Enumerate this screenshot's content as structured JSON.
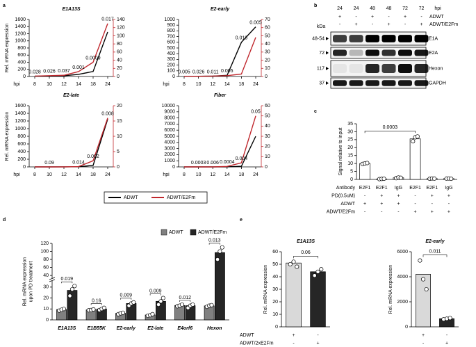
{
  "panel_labels": [
    "a",
    "b",
    "c",
    "d",
    "e"
  ],
  "blot": {
    "lanes": [
      "24",
      "24",
      "48",
      "48",
      "72",
      "72"
    ],
    "lane_unit": "hpi",
    "conditions": [
      {
        "label": "ADWT",
        "cells": [
          "+",
          "-",
          "+",
          "-",
          "+",
          "-"
        ]
      },
      {
        "label": "ADWT/E2Fm",
        "cells": [
          "-",
          "+",
          "-",
          "+",
          "-",
          "+"
        ]
      }
    ],
    "kda_unit": "kDa",
    "bands": [
      {
        "kda": "48-54",
        "name": "E1A"
      },
      {
        "kda": "72",
        "name": "E2A"
      },
      {
        "kda": "117",
        "name": "Hexon"
      },
      {
        "kda": "37",
        "name": "GAPDH"
      }
    ]
  },
  "chart_data": [
    {
      "type": "line",
      "title": "E1A13S",
      "ylabel": "Rel. mRNA expression",
      "xlabel": "hpi",
      "categories": [
        "8",
        "10",
        "12",
        "14",
        "18",
        "24"
      ],
      "series": [
        {
          "color": "#000000",
          "values": [
            8,
            10,
            20,
            60,
            140,
            1250
          ]
        },
        {
          "color": "#c0272d",
          "axis": "y2",
          "values": [
            1,
            2,
            3,
            12,
            35,
            130
          ]
        }
      ],
      "annotations": [
        "0.028",
        "0.026",
        "0.037",
        "0.001",
        "0.0009",
        "0.017"
      ],
      "ylim": [
        0,
        1600
      ],
      "yticks": [
        0,
        200,
        400,
        600,
        800,
        1000,
        1200,
        1400,
        1600
      ],
      "y2lim": [
        0,
        140
      ],
      "y2ticks": [
        0,
        20,
        40,
        60,
        80,
        100,
        120,
        140
      ]
    },
    {
      "type": "line",
      "title": "E2-early",
      "xlabel": "hpi",
      "categories": [
        "8",
        "10",
        "12",
        "14",
        "18",
        "24"
      ],
      "series": [
        {
          "color": "#000000",
          "values": [
            3,
            4,
            6,
            20,
            600,
            870
          ]
        },
        {
          "color": "#c0272d",
          "axis": "y2",
          "values": [
            0.2,
            0.3,
            0.5,
            1,
            3,
            48
          ]
        }
      ],
      "annotations": [
        "0.005",
        "0.026",
        "0.011",
        "0.005",
        "0.018",
        "0.005"
      ],
      "ylim": [
        0,
        1000
      ],
      "yticks": [
        0,
        100,
        200,
        300,
        400,
        500,
        600,
        700,
        800,
        900,
        1000
      ],
      "y2lim": [
        0,
        70
      ],
      "y2ticks": [
        0,
        10,
        20,
        30,
        40,
        50,
        60,
        70
      ]
    },
    {
      "type": "line",
      "title": "E2-late",
      "ylabel": "Rel. mRNA expression",
      "xlabel": "hpi",
      "categories": [
        "8",
        "10",
        "12",
        "14",
        "18",
        "24"
      ],
      "series": [
        {
          "color": "#000000",
          "values": [
            0,
            0,
            1,
            3,
            40,
            1250
          ]
        },
        {
          "color": "#c0272d",
          "axis": "y2",
          "values": [
            0,
            0,
            0,
            0.1,
            2,
            16
          ]
        }
      ],
      "annotations": [
        null,
        "0.09",
        null,
        "0.014",
        "0.002",
        "0.008"
      ],
      "ylim": [
        0,
        1600
      ],
      "yticks": [
        0,
        200,
        400,
        600,
        800,
        1000,
        1200,
        1400,
        1600
      ],
      "y2lim": [
        0,
        20
      ],
      "y2ticks": [
        0,
        5,
        10,
        15,
        20
      ]
    },
    {
      "type": "line",
      "title": "Fiber",
      "xlabel": "hpi",
      "legend": "below",
      "categories": [
        "8",
        "10",
        "12",
        "14",
        "18",
        "24"
      ],
      "series": [
        {
          "name": "ADWT",
          "color": "#000000",
          "values": [
            0,
            0,
            0,
            10,
            100,
            5000
          ]
        },
        {
          "name": "ADWT/E2Fm",
          "color": "#c0272d",
          "axis": "y2",
          "values": [
            0,
            0,
            0,
            0.5,
            4,
            50
          ]
        }
      ],
      "annotations": [
        null,
        "0.0003",
        "0.006",
        "0.0004",
        "0.004",
        "0.05"
      ],
      "ylim": [
        0,
        10000
      ],
      "yticks": [
        0,
        1000,
        2000,
        3000,
        4000,
        5000,
        6000,
        7000,
        8000,
        9000,
        10000
      ],
      "y2lim": [
        0,
        60
      ],
      "y2ticks": [
        0,
        10,
        20,
        30,
        40,
        50,
        60
      ]
    },
    {
      "type": "bar",
      "ylabel": "Signal relative to input",
      "color": "#ffffff",
      "values": [
        10,
        0.3,
        1,
        25.5,
        0.5,
        0.5
      ],
      "points": [
        [
          9.7,
          10.1,
          10.3
        ],
        [
          0.2,
          0.3,
          0.4
        ],
        [
          0.8,
          1.2,
          1.0
        ],
        [
          24,
          26.5,
          27
        ],
        [
          0.4,
          0.6,
          0.5
        ],
        [
          0.5,
          0.6,
          0.4
        ]
      ],
      "ylim": [
        0,
        35
      ],
      "yticks": [
        0,
        5,
        10,
        15,
        20,
        25,
        30,
        35
      ],
      "comparisons": [
        {
          "bars": [
            0,
            3
          ],
          "label": "0.0003"
        }
      ],
      "table": {
        "rows": [
          {
            "label": "Antibody",
            "cells": [
              "E2F1",
              "E2F1",
              "IgG",
              "E2F1",
              "E2F1",
              "IgG"
            ]
          },
          {
            "label": "PD(0.5uM)",
            "cells": [
              "-",
              "+",
              "+",
              "-",
              "+",
              "+"
            ]
          },
          {
            "label": "ADWT",
            "cells": [
              "+",
              "+",
              "+",
              "-",
              "-",
              "-"
            ]
          },
          {
            "label": "ADWT/E2Fm",
            "cells": [
              "-",
              "-",
              "-",
              "+",
              "+",
              "+"
            ]
          }
        ]
      }
    },
    {
      "type": "bar",
      "ylabel": [
        "Rel. mRNA expression",
        "upon PD treatment"
      ],
      "legend": "top-right",
      "categories": [
        "E1A13S",
        "E1B55K",
        "E2-early",
        "E2-late",
        "E4orf6",
        "Hexon"
      ],
      "series": [
        {
          "name": "ADWT",
          "color": "#808080",
          "values": [
            9.5,
            9.2,
            6,
            4.5,
            13.2,
            12.8
          ],
          "points": [
            [
              8.5,
              9.3,
              10
            ],
            [
              8.8,
              9,
              9.6
            ],
            [
              5.2,
              6,
              6.5
            ],
            [
              3.8,
              4.3,
              5.2
            ],
            [
              12.5,
              13,
              14
            ],
            [
              12,
              13,
              13.5
            ]
          ]
        },
        {
          "name": "ADWT/E2Fm",
          "color": "#262626",
          "values": [
            27,
            10,
            15,
            17,
            13,
            97
          ],
          "points": [
            [
              22,
              28,
              31
            ],
            [
              9,
              10,
              11
            ],
            [
              13,
              15,
              16
            ],
            [
              14,
              17,
              20
            ],
            [
              11,
              13,
              14
            ],
            [
              80,
              100,
              110
            ]
          ]
        }
      ],
      "annotations": [
        "0.019",
        "0.16",
        "0.009",
        "0.009",
        "0.012",
        "0.013"
      ],
      "ylim": [
        0,
        120
      ],
      "ybreak": 35,
      "yticks": [
        0,
        10,
        20,
        30,
        40,
        60,
        80,
        100,
        120
      ]
    },
    {
      "type": "bar",
      "title": "E1A13S",
      "ylabel": "Rel. mRNA expression",
      "values": [
        51,
        44
      ],
      "colors": [
        "#d9d9d9",
        "#262626"
      ],
      "points": [
        [
          50,
          52,
          48
        ],
        [
          41,
          44,
          46
        ]
      ],
      "ylim": [
        0,
        60
      ],
      "yticks": [
        0,
        10,
        20,
        30,
        40,
        50,
        60
      ],
      "comparisons": [
        {
          "bars": [
            0,
            1
          ],
          "label": "0.06"
        }
      ],
      "table": {
        "rows": [
          {
            "label": "ADWT",
            "cells": [
              "+",
              "-"
            ]
          },
          {
            "label": "ADWT/2xE2Fm",
            "cells": [
              "-",
              "+"
            ]
          }
        ]
      }
    },
    {
      "type": "bar",
      "title": "E2-early",
      "ylabel": "Rel. mRNA expression",
      "values": [
        4200,
        650
      ],
      "colors": [
        "#d9d9d9",
        "#262626"
      ],
      "points": [
        [
          5300,
          3800,
          3000
        ],
        [
          600,
          650,
          700
        ]
      ],
      "ylim": [
        0,
        6000
      ],
      "yticks": [
        0,
        2000,
        4000,
        6000
      ],
      "comparisons": [
        {
          "bars": [
            0,
            1
          ],
          "label": "0.011"
        }
      ],
      "table": {
        "rows": [
          {
            "cells": [
              "+",
              "-"
            ]
          },
          {
            "cells": [
              "-",
              "+"
            ]
          }
        ]
      }
    }
  ]
}
